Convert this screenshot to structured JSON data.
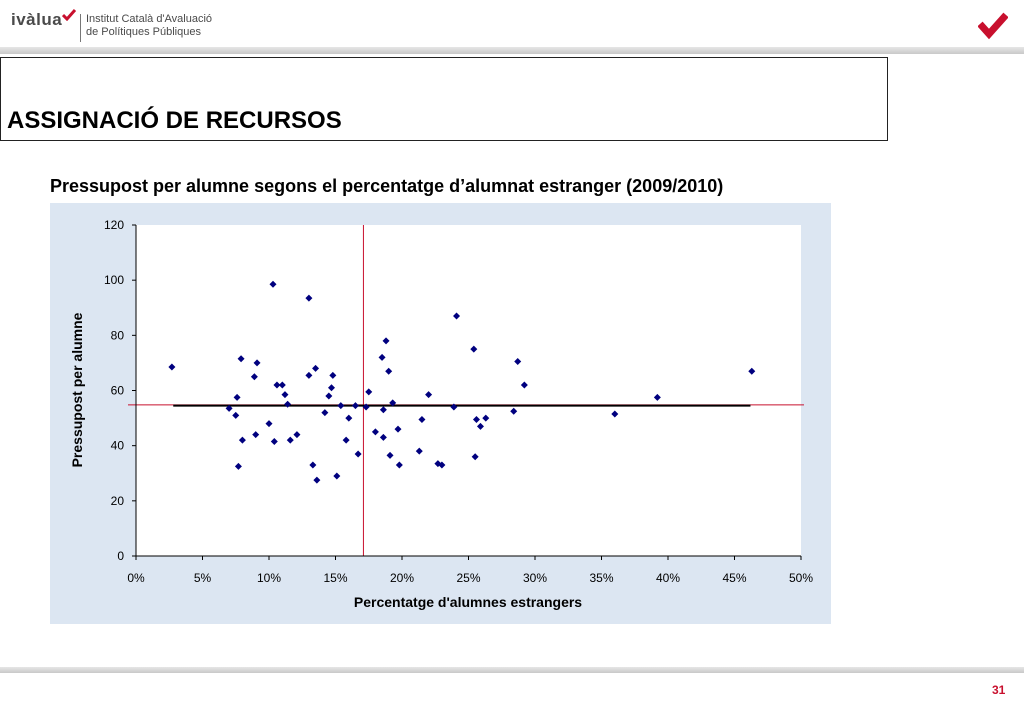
{
  "header": {
    "logo_word": "ivàlua",
    "institute_line1": "Institut Català d'Avaluació",
    "institute_line2": "de Polítiques Públiques"
  },
  "slide": {
    "title": "ASSIGNACIÓ DE RECURSOS",
    "subtitle": "Pressupost per alumne segons el percentatge d’alumnat estranger (2009/2010)",
    "page_number": "31"
  },
  "colors": {
    "brand_red": "#c8102e",
    "point_color": "#00007f",
    "chart_background": "#dce6f2"
  },
  "chart_data": {
    "type": "scatter",
    "xlabel": "Percentatge d'alumnes estrangers",
    "ylabel": "Pressupost per alumne",
    "xlim": [
      0,
      50
    ],
    "ylim": [
      0,
      120
    ],
    "x_ticks": [
      "0%",
      "5%",
      "10%",
      "15%",
      "20%",
      "25%",
      "30%",
      "35%",
      "40%",
      "45%",
      "50%"
    ],
    "y_ticks": [
      "0",
      "20",
      "40",
      "60",
      "80",
      "100",
      "120"
    ],
    "grid": false,
    "reference_lines": {
      "vertical_x": 17.1,
      "horizontal_y": 54.8
    },
    "trend_line": {
      "x_start": 2.8,
      "x_end": 46.2,
      "y": 54.5
    },
    "series": [
      {
        "points": [
          [
            2.7,
            68.5
          ],
          [
            7.0,
            53.5
          ],
          [
            7.6,
            57.5
          ],
          [
            7.5,
            51.0
          ],
          [
            7.7,
            32.5
          ],
          [
            7.9,
            71.5
          ],
          [
            8.0,
            42.0
          ],
          [
            8.9,
            65.0
          ],
          [
            9.1,
            70.0
          ],
          [
            9.0,
            44.0
          ],
          [
            10.0,
            48.0
          ],
          [
            10.3,
            98.5
          ],
          [
            10.4,
            41.5
          ],
          [
            10.6,
            62.0
          ],
          [
            11.0,
            62.0
          ],
          [
            11.2,
            58.5
          ],
          [
            11.4,
            55.0
          ],
          [
            11.6,
            42.0
          ],
          [
            12.1,
            44.0
          ],
          [
            13.0,
            93.5
          ],
          [
            13.0,
            65.5
          ],
          [
            13.3,
            33.0
          ],
          [
            13.5,
            68.0
          ],
          [
            13.6,
            27.5
          ],
          [
            14.2,
            52.0
          ],
          [
            14.5,
            58.0
          ],
          [
            14.7,
            61.0
          ],
          [
            14.8,
            65.5
          ],
          [
            15.1,
            29.0
          ],
          [
            15.4,
            54.5
          ],
          [
            15.8,
            42.0
          ],
          [
            16.0,
            50.0
          ],
          [
            16.5,
            54.5
          ],
          [
            16.7,
            37.0
          ],
          [
            17.3,
            54.0
          ],
          [
            17.5,
            59.5
          ],
          [
            18.0,
            45.0
          ],
          [
            18.6,
            53.0
          ],
          [
            18.6,
            43.0
          ],
          [
            18.5,
            72.0
          ],
          [
            18.8,
            78.0
          ],
          [
            19.0,
            67.0
          ],
          [
            19.1,
            36.5
          ],
          [
            19.3,
            55.5
          ],
          [
            19.7,
            46.0
          ],
          [
            19.8,
            33.0
          ],
          [
            21.3,
            38.0
          ],
          [
            21.5,
            49.5
          ],
          [
            22.0,
            58.5
          ],
          [
            22.7,
            33.5
          ],
          [
            23.0,
            33.0
          ],
          [
            23.9,
            54.0
          ],
          [
            24.1,
            87.0
          ],
          [
            25.4,
            75.0
          ],
          [
            25.5,
            36.0
          ],
          [
            25.6,
            49.5
          ],
          [
            25.9,
            47.0
          ],
          [
            26.3,
            50.0
          ],
          [
            28.4,
            52.5
          ],
          [
            28.7,
            70.5
          ],
          [
            29.2,
            62.0
          ],
          [
            36.0,
            51.5
          ],
          [
            39.2,
            57.5
          ],
          [
            46.3,
            67.0
          ]
        ]
      }
    ]
  }
}
